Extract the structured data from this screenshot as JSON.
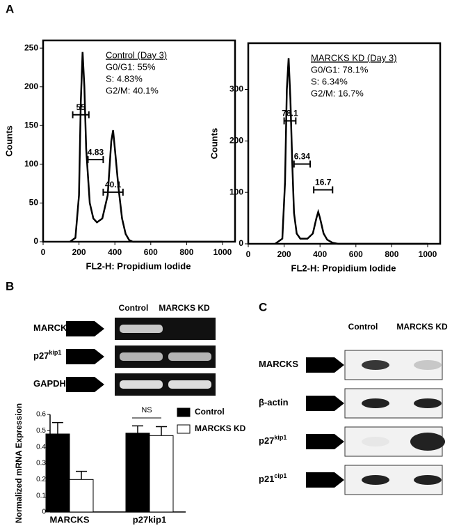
{
  "panel_labels": [
    "A",
    "B",
    "C"
  ],
  "chart_data": [
    {
      "type": "line",
      "x_label": "FL2-H: Propidium Iodide",
      "y_label": "Counts",
      "annotations": [
        "Control (Day 3)",
        "G0/G1: 55%",
        "S: 4.83%",
        "G2/M: 40.1%"
      ],
      "x": [
        150,
        180,
        200,
        210,
        220,
        230,
        240,
        260,
        280,
        300,
        330,
        360,
        380,
        390,
        400,
        420,
        440,
        460,
        480,
        500,
        600,
        1000
      ],
      "values": [
        0,
        5,
        60,
        180,
        245,
        200,
        120,
        50,
        30,
        25,
        30,
        60,
        130,
        144,
        120,
        70,
        30,
        10,
        2,
        0,
        0,
        0
      ],
      "color": "#000000",
      "gates": [
        {
          "label": "55",
          "x1": 165,
          "x2": 255,
          "y": 164
        },
        {
          "label": "4.83",
          "x1": 250,
          "x2": 335,
          "y": 106
        },
        {
          "label": "40.1",
          "x1": 335,
          "x2": 445,
          "y": 64
        }
      ],
      "xlim": [
        0,
        1000
      ],
      "xticks": [
        0,
        200,
        400,
        600,
        800,
        1000
      ],
      "ylim": [
        0,
        260
      ],
      "yticks": [
        0,
        50,
        100,
        150,
        200,
        250
      ]
    },
    {
      "type": "line",
      "x_label": "FL2-H: Propidium Iodide",
      "y_label": "Counts",
      "annotations": [
        "MARCKS KD (Day 3)",
        "G0/G1: 78.1%",
        "S: 6.34%",
        "G2/M: 16.7%"
      ],
      "x": [
        150,
        190,
        205,
        215,
        225,
        235,
        245,
        255,
        270,
        290,
        330,
        360,
        380,
        390,
        400,
        420,
        440,
        470,
        500,
        1000
      ],
      "values": [
        0,
        10,
        120,
        300,
        361,
        280,
        160,
        60,
        20,
        10,
        10,
        20,
        50,
        62,
        50,
        20,
        8,
        2,
        0,
        0
      ],
      "color": "#000000",
      "gates": [
        {
          "label": "78.1",
          "x1": 200,
          "x2": 265,
          "y": 239
        },
        {
          "label": "6.34",
          "x1": 255,
          "x2": 345,
          "y": 155
        },
        {
          "label": "16.7",
          "x1": 365,
          "x2": 470,
          "y": 105
        }
      ],
      "xlim": [
        0,
        1000
      ],
      "xticks": [
        0,
        200,
        400,
        600,
        800,
        1000
      ],
      "ylim": [
        0,
        390
      ],
      "yticks": [
        0,
        100,
        200,
        300
      ]
    },
    {
      "type": "bar",
      "y_label": "Normalized mRNA Expression",
      "categories": [
        "MARCKS",
        "p27kip1"
      ],
      "series": [
        {
          "name": "Control",
          "color": "#000000",
          "values": [
            0.48,
            0.485
          ],
          "errors": [
            0.07,
            0.045
          ]
        },
        {
          "name": "MARCKS KD",
          "color": "#ffffff",
          "values": [
            0.2,
            0.47
          ],
          "errors": [
            0.05,
            0.055
          ]
        }
      ],
      "annotation": "NS",
      "ylim": [
        0,
        0.6
      ],
      "yticks": [
        0,
        0.1,
        0.2,
        0.3,
        0.4,
        0.5,
        0.6
      ]
    }
  ],
  "gel_b": {
    "columns": [
      "Control",
      "MARCKS KD"
    ],
    "rows": [
      {
        "name": "MARCKS"
      },
      {
        "name": "p27",
        "sup": "kip1"
      },
      {
        "name": "GAPDH"
      }
    ]
  },
  "blot_c": {
    "columns": [
      "Control",
      "MARCKS KD"
    ],
    "rows": [
      {
        "name": "MARCKS"
      },
      {
        "name": "β-actin"
      },
      {
        "name": "p27",
        "sup": "kip1"
      },
      {
        "name": "p21",
        "sup": "cip1"
      }
    ]
  }
}
